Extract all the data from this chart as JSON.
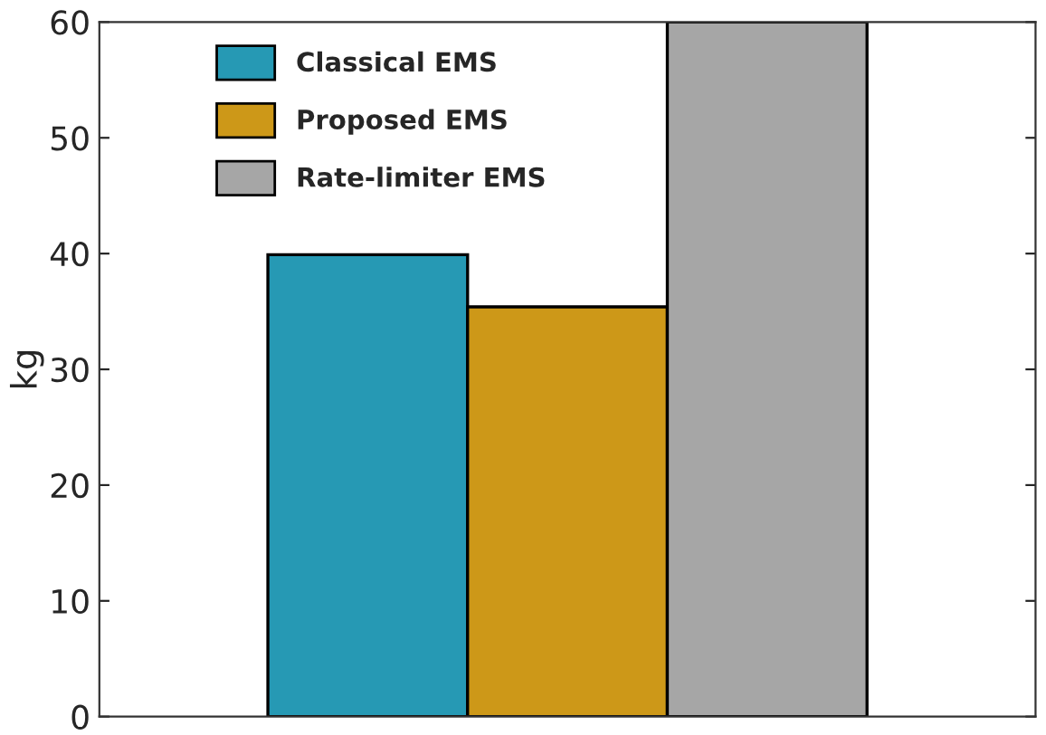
{
  "chart_data": {
    "type": "bar",
    "ylabel": "kg",
    "categories": [
      null
    ],
    "series": [
      {
        "name": "Classical EMS",
        "color": "#2699b4",
        "values": [
          39.9
        ]
      },
      {
        "name": "Proposed EMS",
        "color": "#cd9818",
        "values": [
          35.4
        ]
      },
      {
        "name": "Rate-limiter EMS",
        "color": "#a6a6a6",
        "values": [
          60
        ]
      }
    ],
    "ylim": [
      0,
      60
    ],
    "yticks": [
      0,
      10,
      20,
      30,
      40,
      50,
      60
    ],
    "grid": false,
    "legend": "top left"
  }
}
